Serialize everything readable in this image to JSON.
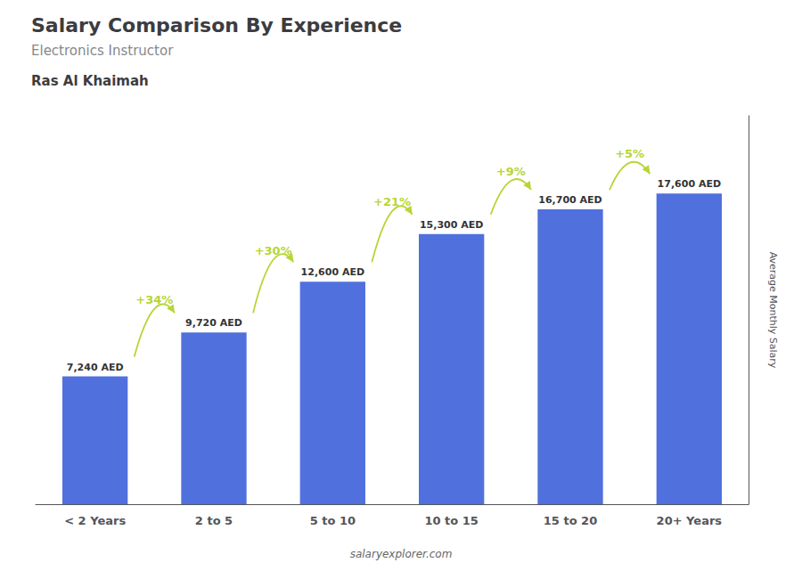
{
  "chart_data": {
    "type": "bar",
    "title": "Salary Comparison By Experience",
    "subtitle": "Electronics Instructor",
    "annotations": {
      "location": "Ras Al Khaimah",
      "pct_changes": [
        "+34%",
        "+30%",
        "+21%",
        "+9%",
        "+5%"
      ],
      "watermark": "salaryexplorer.com"
    },
    "ylabel": "Average Monthly Salary",
    "categories": [
      "< 2 Years",
      "2 to 5",
      "5 to 10",
      "10 to 15",
      "15 to 20",
      "20+ Years"
    ],
    "values": [
      7240,
      9720,
      12600,
      15300,
      16700,
      17600
    ],
    "value_labels": [
      "7,240 AED",
      "9,720 AED",
      "12,600 AED",
      "15,300 AED",
      "16,700 AED",
      "17,600 AED"
    ],
    "data_labels": true,
    "ylim": [
      0,
      22000
    ],
    "tick_labels": "x",
    "grid": false
  }
}
